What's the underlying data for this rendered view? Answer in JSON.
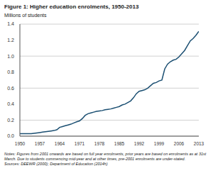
{
  "chart_data": {
    "type": "line",
    "title": "Figure 1: Higher education enrolments, 1950-2013",
    "y_label": "Millions of students",
    "notes": "Notes: Figures from 2001 onwards are based on full year enrolments, prior years are based on enrolments as at 31st March. Due to students commencing mid-year and at other times, pre-2001 enrolments are under-stated.",
    "sources": "Sources: DEEWR (2000); Department of Education (2014h)",
    "x": [
      1950,
      1951,
      1952,
      1953,
      1954,
      1955,
      1956,
      1957,
      1958,
      1959,
      1960,
      1961,
      1962,
      1963,
      1964,
      1965,
      1966,
      1967,
      1968,
      1969,
      1970,
      1971,
      1972,
      1973,
      1974,
      1975,
      1976,
      1977,
      1978,
      1979,
      1980,
      1981,
      1982,
      1983,
      1984,
      1985,
      1986,
      1987,
      1988,
      1989,
      1990,
      1991,
      1992,
      1993,
      1994,
      1995,
      1996,
      1997,
      1998,
      1999,
      2000,
      2001,
      2002,
      2003,
      2004,
      2005,
      2006,
      2007,
      2008,
      2009,
      2010,
      2011,
      2012,
      2013
    ],
    "values": [
      0.03,
      0.03,
      0.03,
      0.03,
      0.03,
      0.035,
      0.04,
      0.045,
      0.05,
      0.055,
      0.06,
      0.065,
      0.07,
      0.08,
      0.11,
      0.12,
      0.13,
      0.14,
      0.15,
      0.165,
      0.18,
      0.19,
      0.22,
      0.26,
      0.28,
      0.29,
      0.3,
      0.31,
      0.315,
      0.32,
      0.33,
      0.335,
      0.34,
      0.35,
      0.36,
      0.37,
      0.39,
      0.4,
      0.42,
      0.44,
      0.48,
      0.53,
      0.56,
      0.57,
      0.58,
      0.6,
      0.63,
      0.66,
      0.67,
      0.69,
      0.7,
      0.84,
      0.9,
      0.93,
      0.95,
      0.96,
      0.99,
      1.03,
      1.07,
      1.13,
      1.19,
      1.22,
      1.26,
      1.31
    ],
    "color": "#1b4f72",
    "xlim": [
      1950,
      2013
    ],
    "xticks": [
      1950,
      1957,
      1964,
      1971,
      1978,
      1985,
      1992,
      1999,
      2006,
      2013
    ],
    "ylim": [
      0,
      1.4
    ],
    "yticks": [
      {
        "value": 0,
        "label": "0.0"
      },
      0.2,
      0.4,
      0.6,
      0.8,
      {
        "value": 1,
        "label": "1.0"
      },
      1.2,
      1.4
    ],
    "grid": true
  }
}
